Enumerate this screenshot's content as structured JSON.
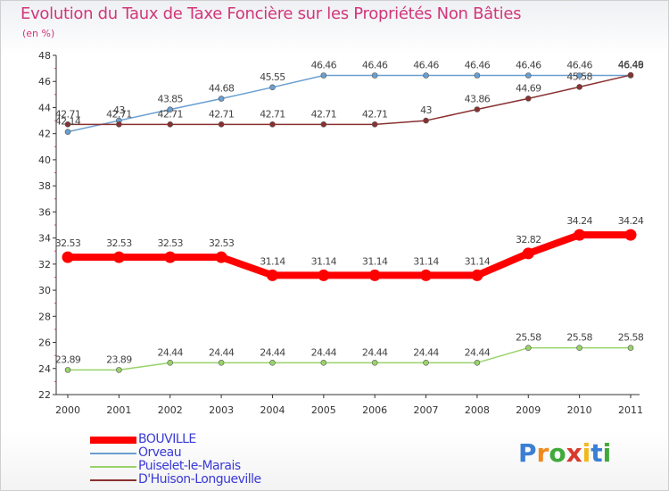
{
  "title": "Evolution du Taux de Taxe Foncière sur les Propriétés Non Bâties",
  "unit_label": "(en %)",
  "logo": {
    "text": "Proxiti",
    "letters": [
      {
        "ch": "P",
        "color": "#3b7fd4"
      },
      {
        "ch": "r",
        "color": "#f08a1c"
      },
      {
        "ch": "o",
        "color": "#3faa3a"
      },
      {
        "ch": "x",
        "color": "#d83a2c"
      },
      {
        "ch": "i",
        "color": "#f2b81c"
      },
      {
        "ch": "t",
        "color": "#3b7fd4"
      },
      {
        "ch": "i",
        "color": "#3faa3a"
      }
    ]
  },
  "chart_data": {
    "type": "line",
    "title": "Evolution du Taux de Taxe Foncière sur les Propriétés Non Bâties",
    "ylabel": "(en %)",
    "xlabel": "",
    "categories": [
      "2000",
      "2001",
      "2002",
      "2003",
      "2004",
      "2005",
      "2006",
      "2007",
      "2008",
      "2009",
      "2010",
      "2011"
    ],
    "ylim": [
      22,
      48
    ],
    "yticks": [
      22,
      24,
      26,
      28,
      30,
      32,
      34,
      36,
      38,
      40,
      42,
      44,
      46,
      48
    ],
    "grid": false,
    "legend": "bottom-left",
    "series": [
      {
        "name": "BOUVILLE",
        "color": "#ff0000",
        "width": 8,
        "values": [
          32.53,
          32.53,
          32.53,
          32.53,
          31.14,
          31.14,
          31.14,
          31.14,
          31.14,
          32.82,
          34.24,
          34.24
        ],
        "labels": [
          "32.53",
          "32.53",
          "32.53",
          "32.53",
          "31.14",
          "31.14",
          "31.14",
          "31.14",
          "31.14",
          "32.82",
          "34.24",
          "34.24"
        ]
      },
      {
        "name": "Orveau",
        "color": "#6a9fd0",
        "width": 1.5,
        "values": [
          42.14,
          43,
          43.85,
          44.68,
          45.55,
          46.46,
          46.46,
          46.46,
          46.46,
          46.46,
          46.46,
          46.46
        ],
        "labels": [
          "42.14",
          "43",
          "43.85",
          "44.68",
          "45.55",
          "46.46",
          "46.46",
          "46.46",
          "46.46",
          "46.46",
          "46.46",
          "46.46"
        ]
      },
      {
        "name": "Puiselet-le-Marais",
        "color": "#99d26a",
        "width": 1.5,
        "values": [
          23.89,
          23.89,
          24.44,
          24.44,
          24.44,
          24.44,
          24.44,
          24.44,
          24.44,
          25.58,
          25.58,
          25.58
        ],
        "labels": [
          "23.89",
          "23.89",
          "24.44",
          "24.44",
          "24.44",
          "24.44",
          "24.44",
          "24.44",
          "24.44",
          "25.58",
          "25.58",
          "25.58"
        ]
      },
      {
        "name": "D'Huison-Longueville",
        "color": "#8a3030",
        "width": 1.5,
        "values": [
          42.71,
          42.71,
          42.71,
          42.71,
          42.71,
          42.71,
          42.71,
          43,
          43.86,
          44.69,
          45.58,
          46.49
        ],
        "labels": [
          "42.71",
          "42.71",
          "42.71",
          "42.71",
          "42.71",
          "42.71",
          "42.71",
          "43",
          "43.86",
          "44.69",
          "45.58",
          "46.49"
        ]
      }
    ]
  }
}
